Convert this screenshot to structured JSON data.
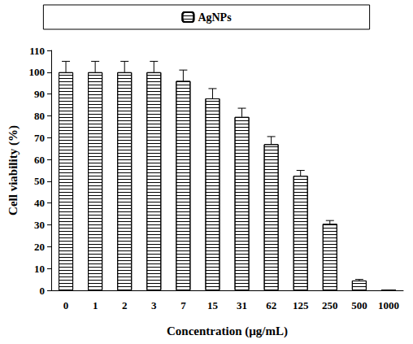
{
  "chart_data": {
    "type": "bar",
    "x_label": "Concentration (µg/mL)",
    "y_label": "Cell viability (%)",
    "categories": [
      "0",
      "1",
      "2",
      "3",
      "7",
      "15",
      "31",
      "62",
      "125",
      "250",
      "500",
      "1000"
    ],
    "series": [
      {
        "name": "AgNPs",
        "color": "#000000",
        "values": [
          100,
          100,
          100,
          100,
          96,
          88,
          79.5,
          67,
          52.5,
          30.5,
          4.5,
          0
        ],
        "errors": [
          5,
          5,
          5,
          5,
          5,
          4.5,
          4,
          3.5,
          2.5,
          1.5,
          0.5,
          0
        ]
      }
    ],
    "ylim": [
      0,
      110
    ],
    "yticks": [
      0,
      10,
      20,
      30,
      40,
      50,
      60,
      70,
      80,
      90,
      100,
      110
    ],
    "grid": false,
    "legend": "top"
  }
}
